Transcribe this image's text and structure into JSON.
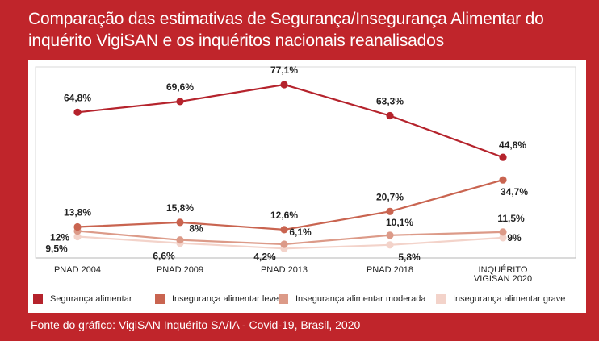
{
  "title": "Comparação das estimativas de Segurança/Insegurança Alimentar do inquérito VigiSAN e os inquéritos nacionais reanalisados",
  "source": "Fonte do gráfico: VigiSAN Inquérito SA/IA - Covid-19, Brasil, 2020",
  "chart_data": {
    "type": "line",
    "categories": [
      "PNAD 2004",
      "PNAD 2009",
      "PNAD 2013",
      "PNAD 2018",
      "INQUÉRITO VIGISAN 2020"
    ],
    "category_lines": [
      [
        "PNAD 2004"
      ],
      [
        "PNAD 2009"
      ],
      [
        "PNAD 2013"
      ],
      [
        "PNAD 2018"
      ],
      [
        "INQUÉRITO",
        "VIGISAN 2020"
      ]
    ],
    "ylim": [
      0,
      85
    ],
    "grid": false,
    "legend_position": "bottom",
    "series": [
      {
        "name": "Segurança alimentar",
        "color": "#b5232c",
        "values": [
          64.8,
          69.6,
          77.1,
          63.3,
          44.8
        ],
        "labels": [
          "64,8%",
          "69,6%",
          "77,1%",
          "63,3%",
          "44,8%"
        ]
      },
      {
        "name": "Insegurança alimentar leve",
        "color": "#c96450",
        "values": [
          13.8,
          15.8,
          12.6,
          20.7,
          34.7
        ],
        "labels": [
          "13,8%",
          "15,8%",
          "12,6%",
          "20,7%",
          "34,7%"
        ]
      },
      {
        "name": "Insegurança alimentar moderada",
        "color": "#dc9a88",
        "values": [
          12,
          8,
          6.1,
          10.1,
          11.5
        ],
        "labels": [
          "12%",
          "8%",
          "6,1%",
          "10,1%",
          "11,5%"
        ]
      },
      {
        "name": "Insegurança alimentar grave",
        "color": "#f3d3ca",
        "values": [
          9.5,
          6.6,
          4.2,
          5.8,
          9
        ],
        "labels": [
          "9,5%",
          "6,6%",
          "4,2%",
          "5,8%",
          "9%"
        ]
      }
    ]
  }
}
